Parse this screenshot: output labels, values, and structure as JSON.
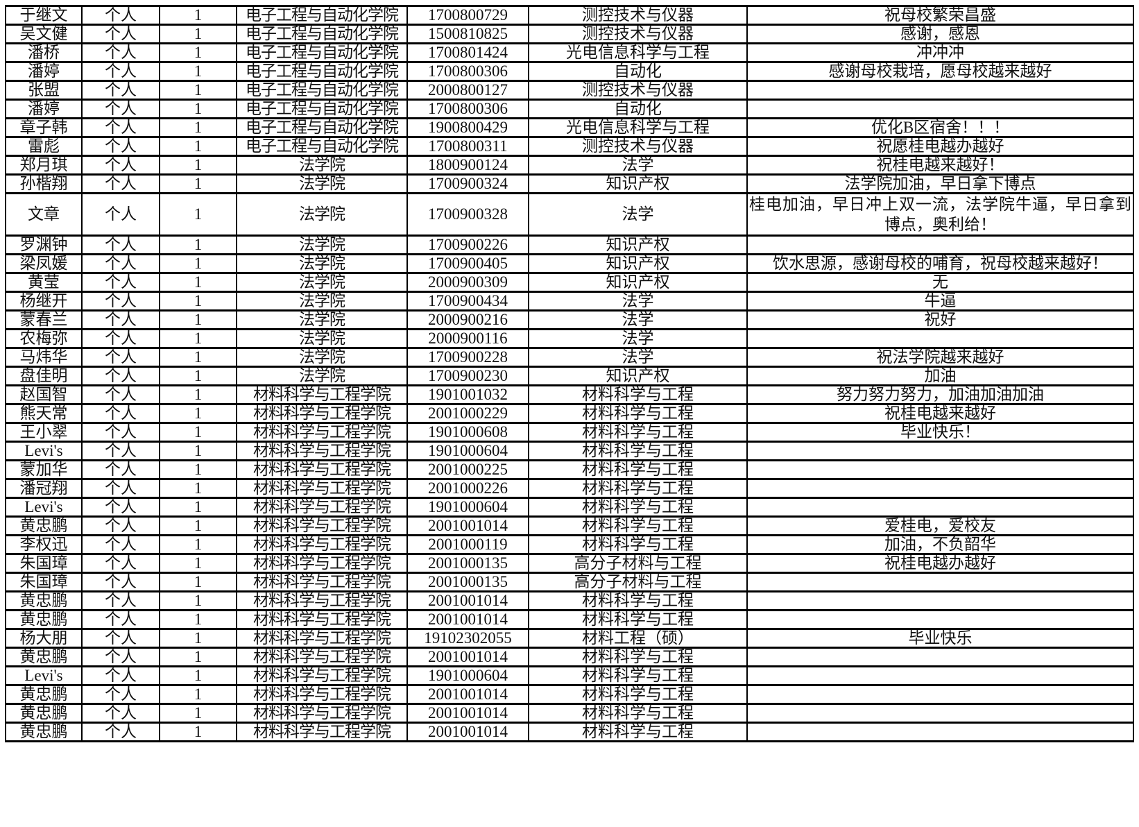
{
  "table": {
    "rows": [
      [
        "于继文",
        "个人",
        "1",
        "电子工程与自动化学院",
        "1700800729",
        "测控技术与仪器",
        "祝母校繁荣昌盛"
      ],
      [
        "吴文健",
        "个人",
        "1",
        "电子工程与自动化学院",
        "1500810825",
        "测控技术与仪器",
        "感谢，感恩"
      ],
      [
        "潘桥",
        "个人",
        "1",
        "电子工程与自动化学院",
        "1700801424",
        "光电信息科学与工程",
        "冲冲冲"
      ],
      [
        "潘婷",
        "个人",
        "1",
        "电子工程与自动化学院",
        "1700800306",
        "自动化",
        "感谢母校栽培，愿母校越来越好"
      ],
      [
        "张盟",
        "个人",
        "1",
        "电子工程与自动化学院",
        "2000800127",
        "测控技术与仪器",
        ""
      ],
      [
        "潘婷",
        "个人",
        "1",
        "电子工程与自动化学院",
        "1700800306",
        "自动化",
        ""
      ],
      [
        "章子韩",
        "个人",
        "1",
        "电子工程与自动化学院",
        "1900800429",
        "光电信息科学与工程",
        "优化B区宿舍！！！"
      ],
      [
        "雷彪",
        "个人",
        "1",
        "电子工程与自动化学院",
        "1700800311",
        "测控技术与仪器",
        "祝愿桂电越办越好"
      ],
      [
        "郑月琪",
        "个人",
        "1",
        "法学院",
        "1800900124",
        "法学",
        "祝桂电越来越好！"
      ],
      [
        "孙楷翔",
        "个人",
        "1",
        "法学院",
        "1700900324",
        "知识产权",
        "法学院加油，早日拿下博点"
      ],
      [
        "文章",
        "个人",
        "1",
        "法学院",
        "1700900328",
        "法学",
        "桂电加油，早日冲上双一流，法学院牛逼，早日拿到博点，奥利给！"
      ],
      [
        "罗渊钟",
        "个人",
        "1",
        "法学院",
        "1700900226",
        "知识产权",
        ""
      ],
      [
        "梁凤媛",
        "个人",
        "1",
        "法学院",
        "1700900405",
        "知识产权",
        "饮水思源，感谢母校的哺育，祝母校越来越好！"
      ],
      [
        "黄莹",
        "个人",
        "1",
        "法学院",
        "2000900309",
        "知识产权",
        "无"
      ],
      [
        "杨继开",
        "个人",
        "1",
        "法学院",
        "1700900434",
        "法学",
        "牛逼"
      ],
      [
        "蒙春兰",
        "个人",
        "1",
        "法学院",
        "2000900216",
        "法学",
        "祝好"
      ],
      [
        "农梅弥",
        "个人",
        "1",
        "法学院",
        "2000900116",
        "法学",
        ""
      ],
      [
        "马炜华",
        "个人",
        "1",
        "法学院",
        "1700900228",
        "法学",
        "祝法学院越来越好"
      ],
      [
        "盘佳明",
        "个人",
        "1",
        "法学院",
        "1700900230",
        "知识产权",
        "加油"
      ],
      [
        "赵国智",
        "个人",
        "1",
        "材料科学与工程学院",
        "1901001032",
        "材料科学与工程",
        "努力努力努力，加油加油加油"
      ],
      [
        "熊天常",
        "个人",
        "1",
        "材料科学与工程学院",
        "2001000229",
        "材料科学与工程",
        "祝桂电越来越好"
      ],
      [
        "王小翠",
        "个人",
        "1",
        "材料科学与工程学院",
        "1901000608",
        "材料科学与工程",
        "毕业快乐！"
      ],
      [
        "Levi's",
        "个人",
        "1",
        "材料科学与工程学院",
        "1901000604",
        "材料科学与工程",
        ""
      ],
      [
        "蒙加华",
        "个人",
        "1",
        "材料科学与工程学院",
        "2001000225",
        "材料科学与工程",
        ""
      ],
      [
        "潘冠翔",
        "个人",
        "1",
        "材料科学与工程学院",
        "2001000226",
        "材料科学与工程",
        ""
      ],
      [
        "Levi's",
        "个人",
        "1",
        "材料科学与工程学院",
        "1901000604",
        "材料科学与工程",
        ""
      ],
      [
        "黄忠鹏",
        "个人",
        "1",
        "材料科学与工程学院",
        "2001001014",
        "材料科学与工程",
        "爱桂电，爱校友"
      ],
      [
        "李权迅",
        "个人",
        "1",
        "材料科学与工程学院",
        "2001000119",
        "材料科学与工程",
        "加油，不负韶华"
      ],
      [
        "朱国璋",
        "个人",
        "1",
        "材料科学与工程学院",
        "2001000135",
        "高分子材料与工程",
        "祝桂电越办越好"
      ],
      [
        "朱国璋",
        "个人",
        "1",
        "材料科学与工程学院",
        "2001000135",
        "高分子材料与工程",
        ""
      ],
      [
        "黄忠鹏",
        "个人",
        "1",
        "材料科学与工程学院",
        "2001001014",
        "材料科学与工程",
        ""
      ],
      [
        "黄忠鹏",
        "个人",
        "1",
        "材料科学与工程学院",
        "2001001014",
        "材料科学与工程",
        ""
      ],
      [
        "杨大朋",
        "个人",
        "1",
        "材料科学与工程学院",
        "19102302055",
        "材料工程（硕）",
        "毕业快乐"
      ],
      [
        "黄忠鹏",
        "个人",
        "1",
        "材料科学与工程学院",
        "2001001014",
        "材料科学与工程",
        ""
      ],
      [
        "Levi's",
        "个人",
        "1",
        "材料科学与工程学院",
        "1901000604",
        "材料科学与工程",
        ""
      ],
      [
        "黄忠鹏",
        "个人",
        "1",
        "材料科学与工程学院",
        "2001001014",
        "材料科学与工程",
        ""
      ],
      [
        "黄忠鹏",
        "个人",
        "1",
        "材料科学与工程学院",
        "2001001014",
        "材料科学与工程",
        ""
      ],
      [
        "黄忠鹏",
        "个人",
        "1",
        "材料科学与工程学院",
        "2001001014",
        "材料科学与工程",
        ""
      ]
    ]
  }
}
